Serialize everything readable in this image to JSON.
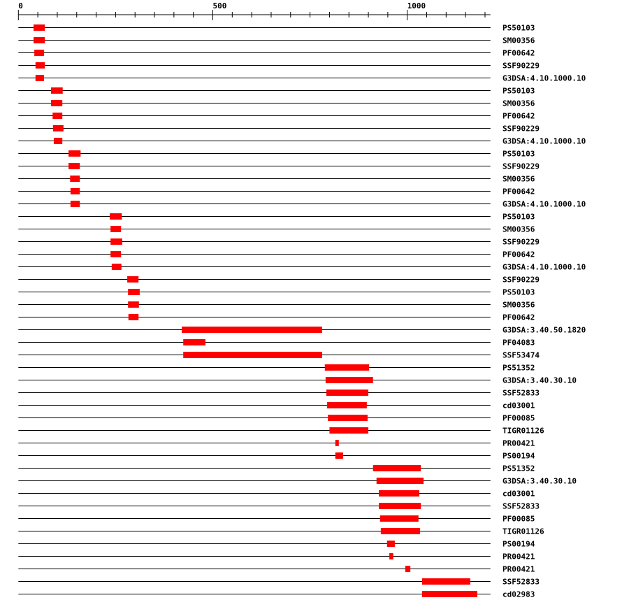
{
  "chart_data": {
    "type": "domain-track",
    "xlim": [
      0,
      1214
    ],
    "axis_ticks_minor_step": 50,
    "axis_tick_labels": [
      {
        "value": 0,
        "label": "0"
      },
      {
        "value": 500,
        "label": "500"
      },
      {
        "value": 1000,
        "label": "1000"
      }
    ],
    "bar_color": "#ff0000",
    "line_color": "#000000",
    "rows": [
      {
        "label": "PS50103",
        "start": 39,
        "end": 68
      },
      {
        "label": "SM00356",
        "start": 39,
        "end": 68
      },
      {
        "label": "PF00642",
        "start": 41,
        "end": 66
      },
      {
        "label": "SSF90229",
        "start": 44,
        "end": 68
      },
      {
        "label": "G3DSA:4.10.1000.10",
        "start": 44,
        "end": 66
      },
      {
        "label": "PS50103",
        "start": 84,
        "end": 114
      },
      {
        "label": "SM00356",
        "start": 84,
        "end": 113
      },
      {
        "label": "PF00642",
        "start": 88,
        "end": 113
      },
      {
        "label": "SSF90229",
        "start": 89,
        "end": 116
      },
      {
        "label": "G3DSA:4.10.1000.10",
        "start": 91,
        "end": 113
      },
      {
        "label": "PS50103",
        "start": 129,
        "end": 160
      },
      {
        "label": "SSF90229",
        "start": 129,
        "end": 158
      },
      {
        "label": "SM00356",
        "start": 133,
        "end": 158
      },
      {
        "label": "PF00642",
        "start": 134,
        "end": 158
      },
      {
        "label": "G3DSA:4.10.1000.10",
        "start": 134,
        "end": 158
      },
      {
        "label": "PS50103",
        "start": 235,
        "end": 266
      },
      {
        "label": "SM00356",
        "start": 237,
        "end": 264
      },
      {
        "label": "SSF90229",
        "start": 237,
        "end": 267
      },
      {
        "label": "PF00642",
        "start": 237,
        "end": 264
      },
      {
        "label": "G3DSA:4.10.1000.10",
        "start": 240,
        "end": 265
      },
      {
        "label": "SSF90229",
        "start": 280,
        "end": 309
      },
      {
        "label": "PS50103",
        "start": 282,
        "end": 312
      },
      {
        "label": "SM00356",
        "start": 282,
        "end": 310
      },
      {
        "label": "PF00642",
        "start": 283,
        "end": 309
      },
      {
        "label": "G3DSA:3.40.50.1820",
        "start": 420,
        "end": 781
      },
      {
        "label": "PF04083",
        "start": 424,
        "end": 481
      },
      {
        "label": "SSF53474",
        "start": 424,
        "end": 781
      },
      {
        "label": "PS51352",
        "start": 788,
        "end": 902
      },
      {
        "label": "G3DSA:3.40.30.10",
        "start": 790,
        "end": 912
      },
      {
        "label": "SSF52833",
        "start": 792,
        "end": 900
      },
      {
        "label": "cd03001",
        "start": 794,
        "end": 896
      },
      {
        "label": "PF00085",
        "start": 796,
        "end": 898
      },
      {
        "label": "TIGR01126",
        "start": 800,
        "end": 900
      },
      {
        "label": "PR00421",
        "start": 815,
        "end": 824
      },
      {
        "label": "PS00194",
        "start": 815,
        "end": 835
      },
      {
        "label": "PS51352",
        "start": 912,
        "end": 1035
      },
      {
        "label": "G3DSA:3.40.30.10",
        "start": 921,
        "end": 1042
      },
      {
        "label": "cd03001",
        "start": 927,
        "end": 1031
      },
      {
        "label": "SSF52833",
        "start": 927,
        "end": 1035
      },
      {
        "label": "PF00085",
        "start": 930,
        "end": 1029
      },
      {
        "label": "TIGR01126",
        "start": 932,
        "end": 1033
      },
      {
        "label": "PS00194",
        "start": 948,
        "end": 968
      },
      {
        "label": "PR00421",
        "start": 954,
        "end": 964
      },
      {
        "label": "PR00421",
        "start": 995,
        "end": 1008
      },
      {
        "label": "SSF52833",
        "start": 1038,
        "end": 1162
      },
      {
        "label": "cd02983",
        "start": 1038,
        "end": 1180
      }
    ]
  }
}
